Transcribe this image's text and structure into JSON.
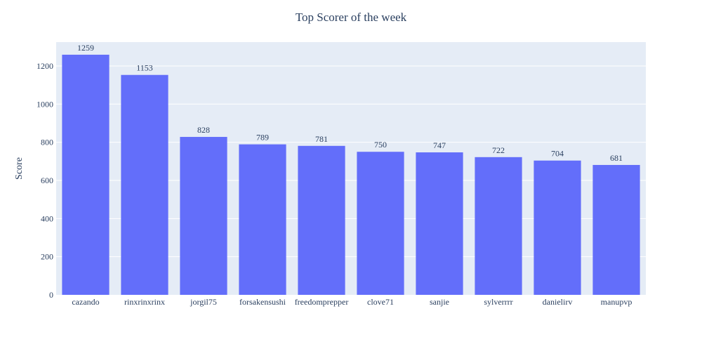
{
  "chart_data": {
    "type": "bar",
    "title": "Top Scorer of the week",
    "xlabel": "",
    "ylabel": "Score",
    "categories": [
      "cazando",
      "rinxrinxrinx",
      "jorgil75",
      "forsakensushi",
      "freedomprepper",
      "clove71",
      "sanjie",
      "sylverrrr",
      "danielirv",
      "manupvp"
    ],
    "values": [
      1259,
      1153,
      828,
      789,
      781,
      750,
      747,
      722,
      704,
      681
    ],
    "ylim": [
      0,
      1325
    ],
    "yticks": [
      0,
      200,
      400,
      600,
      800,
      1000,
      1200
    ],
    "grid": true,
    "legend": "none",
    "colors": {
      "bar": "#636efa",
      "plot_bg": "#e5ecf6",
      "grid": "#ffffff",
      "text": "#2a3f5f"
    }
  }
}
